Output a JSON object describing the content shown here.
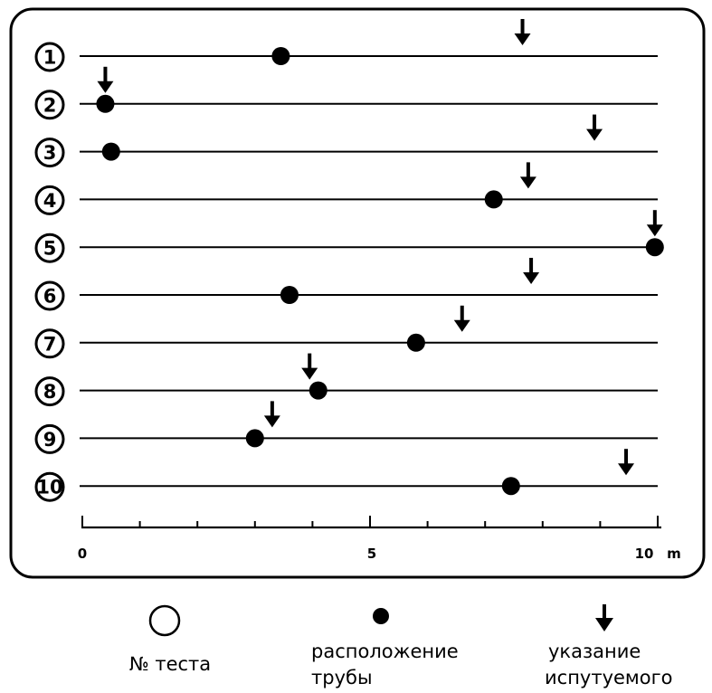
{
  "chart_data": {
    "type": "scatter",
    "title": "",
    "xlabel": "",
    "ylabel": "",
    "x_unit": "m",
    "xlim": [
      0,
      10
    ],
    "x_tick_labels": [
      "0",
      "5",
      "10"
    ],
    "trials": [
      {
        "label": "1",
        "pipe": 3.45,
        "pointed": 7.65
      },
      {
        "label": "2",
        "pipe": 0.4,
        "pointed": 0.4
      },
      {
        "label": "3",
        "pipe": 0.5,
        "pointed": 8.9
      },
      {
        "label": "4",
        "pipe": 7.15,
        "pointed": 7.75
      },
      {
        "label": "5",
        "pipe": 9.95,
        "pointed": 9.95
      },
      {
        "label": "6",
        "pipe": 3.6,
        "pointed": 7.8
      },
      {
        "label": "7",
        "pipe": 5.8,
        "pointed": 6.6
      },
      {
        "label": "8",
        "pipe": 4.1,
        "pointed": 3.95
      },
      {
        "label": "9",
        "pipe": 3.0,
        "pointed": 3.3
      },
      {
        "label": "10",
        "pipe": 7.45,
        "pointed": 9.45
      }
    ],
    "legend": {
      "trial": "№ теста",
      "pipe": [
        "расположение",
        "трубы"
      ],
      "pointed": [
        "указание",
        "испутуемого"
      ]
    },
    "legend_position": "bottom"
  }
}
